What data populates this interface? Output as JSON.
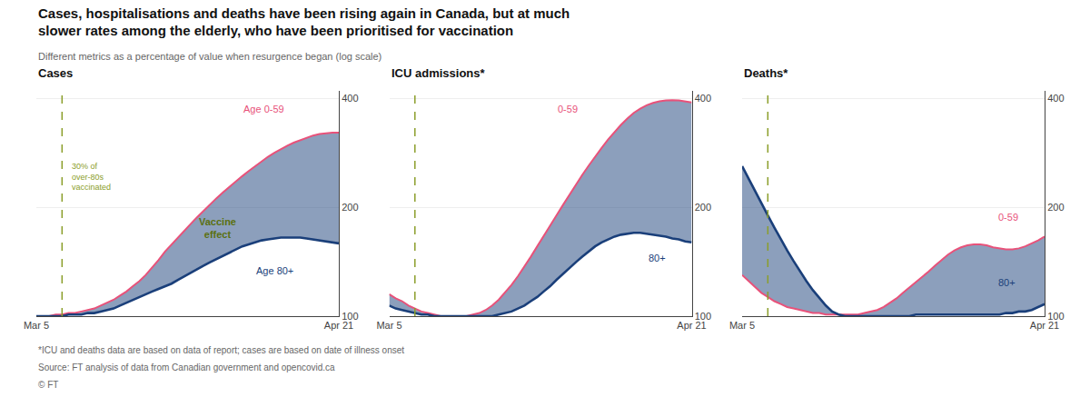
{
  "title": "Cases, hospitalisations and deaths have been rising again in Canada, but at much\nslower rates among the elderly, who have been prioritised for vaccination",
  "subtitle": "Different metrics as a percentage of value when resurgence began (log scale)",
  "notes": [
    "*ICU and deaths data are based on data of report; cases are based on date of illness onset",
    "Source: FT analysis of data from Canadian government and opencovid.ca",
    "© FT"
  ],
  "chart_data": [
    {
      "type": "line",
      "title": "Cases",
      "log": "y",
      "grid": true,
      "categories": [
        "Mar 5",
        null,
        null,
        null,
        null,
        null,
        null,
        null,
        null,
        null,
        null,
        null,
        null,
        null,
        null,
        null,
        null,
        null,
        null,
        null,
        null,
        null,
        null,
        null,
        null,
        null,
        null,
        null,
        null,
        null,
        null,
        null,
        null,
        null,
        null,
        null,
        null,
        null,
        null,
        null,
        null,
        null,
        null,
        null,
        null,
        null,
        null,
        "Apr 21"
      ],
      "ylim": [
        100,
        420
      ],
      "yticks": [
        100,
        200,
        400
      ],
      "series": [
        {
          "name": "Age 0-59",
          "color": "#e8527a",
          "values": [
            100,
            100,
            100,
            101,
            101,
            102,
            102,
            103,
            104,
            105,
            107,
            109,
            111,
            114,
            117,
            121,
            125,
            130,
            136,
            143,
            151,
            158,
            165,
            172,
            180,
            188,
            196,
            204,
            212,
            220,
            228,
            236,
            244,
            252,
            260,
            268,
            276,
            283,
            290,
            296,
            302,
            307,
            312,
            316,
            319,
            321,
            322,
            322
          ]
        },
        {
          "name": "Age 80+",
          "color": "#1a3f7a",
          "values": [
            100,
            100,
            100,
            100,
            100,
            101,
            101,
            101,
            102,
            102,
            103,
            104,
            105,
            107,
            109,
            111,
            113,
            115,
            117,
            119,
            121,
            123,
            126,
            129,
            132,
            135,
            138,
            141,
            144,
            147,
            150,
            153,
            156,
            158,
            160,
            162,
            163,
            164,
            165,
            165,
            165,
            165,
            164,
            163,
            162,
            161,
            160,
            159
          ]
        }
      ],
      "reference_line": {
        "x": 3.995,
        "color": "#8b9e2a",
        "line_style": "dashed"
      },
      "annotations": [
        "Vaccine\neffect",
        "30% of\nover-80s\nvaccinated"
      ]
    },
    {
      "type": "line",
      "title": "ICU admissions*",
      "log": "y",
      "grid": true,
      "categories": [
        "Mar 5",
        null,
        null,
        null,
        null,
        null,
        null,
        null,
        null,
        null,
        null,
        null,
        null,
        null,
        null,
        null,
        null,
        null,
        null,
        null,
        null,
        null,
        null,
        null,
        null,
        null,
        null,
        null,
        null,
        null,
        null,
        null,
        null,
        null,
        null,
        null,
        null,
        null,
        null,
        null,
        null,
        null,
        null,
        null,
        null,
        null,
        null,
        "Apr 21"
      ],
      "ylim": [
        100,
        420
      ],
      "yticks": [
        100,
        200,
        400
      ],
      "series": [
        {
          "name": "0-59",
          "color": "#e8527a",
          "values": [
            115,
            112,
            110,
            107,
            105,
            103,
            102,
            101,
            100,
            100,
            100,
            100,
            100,
            101,
            102,
            104,
            107,
            111,
            116,
            122,
            129,
            137,
            146,
            156,
            167,
            178,
            190,
            203,
            217,
            231,
            246,
            261,
            277,
            292,
            308,
            323,
            338,
            352,
            365,
            375,
            383,
            389,
            393,
            395,
            396,
            395,
            393,
            390
          ]
        },
        {
          "name": "80+",
          "color": "#1a3f7a",
          "values": [
            107,
            105,
            104,
            103,
            102,
            101,
            101,
            100,
            100,
            100,
            100,
            100,
            100,
            100,
            100,
            100,
            100,
            101,
            102,
            103,
            105,
            107,
            110,
            113,
            117,
            121,
            126,
            131,
            136,
            141,
            146,
            151,
            156,
            160,
            163,
            166,
            168,
            169,
            170,
            170,
            169,
            168,
            167,
            166,
            164,
            163,
            161,
            160
          ]
        }
      ],
      "reference_line": {
        "x": 3.995,
        "color": "#8b9e2a",
        "line_style": "dashed"
      }
    },
    {
      "type": "line",
      "title": "Deaths*",
      "log": "y",
      "grid": true,
      "categories": [
        "Mar 5",
        null,
        null,
        null,
        null,
        null,
        null,
        null,
        null,
        null,
        null,
        null,
        null,
        null,
        null,
        null,
        null,
        null,
        null,
        null,
        null,
        null,
        null,
        null,
        null,
        null,
        null,
        null,
        null,
        null,
        null,
        null,
        null,
        null,
        null,
        null,
        null,
        null,
        null,
        null,
        null,
        null,
        null,
        null,
        null,
        null,
        null,
        "Apr 21"
      ],
      "ylim": [
        100,
        420
      ],
      "yticks": [
        100,
        200,
        400
      ],
      "series": [
        {
          "name": "0-59",
          "color": "#e8527a",
          "values": [
            130,
            125,
            120,
            116,
            113,
            110,
            108,
            106,
            105,
            104,
            103,
            102,
            102,
            101,
            101,
            101,
            101,
            101,
            101,
            102,
            103,
            104,
            106,
            109,
            112,
            116,
            120,
            124,
            128,
            133,
            138,
            143,
            148,
            152,
            155,
            157,
            158,
            158,
            157,
            155,
            154,
            153,
            153,
            154,
            156,
            159,
            162,
            166
          ]
        },
        {
          "name": "80+",
          "color": "#1a3f7a",
          "values": [
            260,
            240,
            222,
            205,
            190,
            176,
            163,
            152,
            142,
            133,
            125,
            118,
            112,
            107,
            103,
            101,
            100,
            100,
            100,
            100,
            100,
            100,
            100,
            100,
            100,
            100,
            100,
            101,
            101,
            101,
            101,
            101,
            101,
            101,
            101,
            101,
            101,
            101,
            101,
            101,
            101,
            102,
            102,
            103,
            103,
            104,
            106,
            108
          ]
        }
      ],
      "reference_line": {
        "x": 3.995,
        "color": "#8b9e2a",
        "line_style": "dashed"
      }
    }
  ]
}
